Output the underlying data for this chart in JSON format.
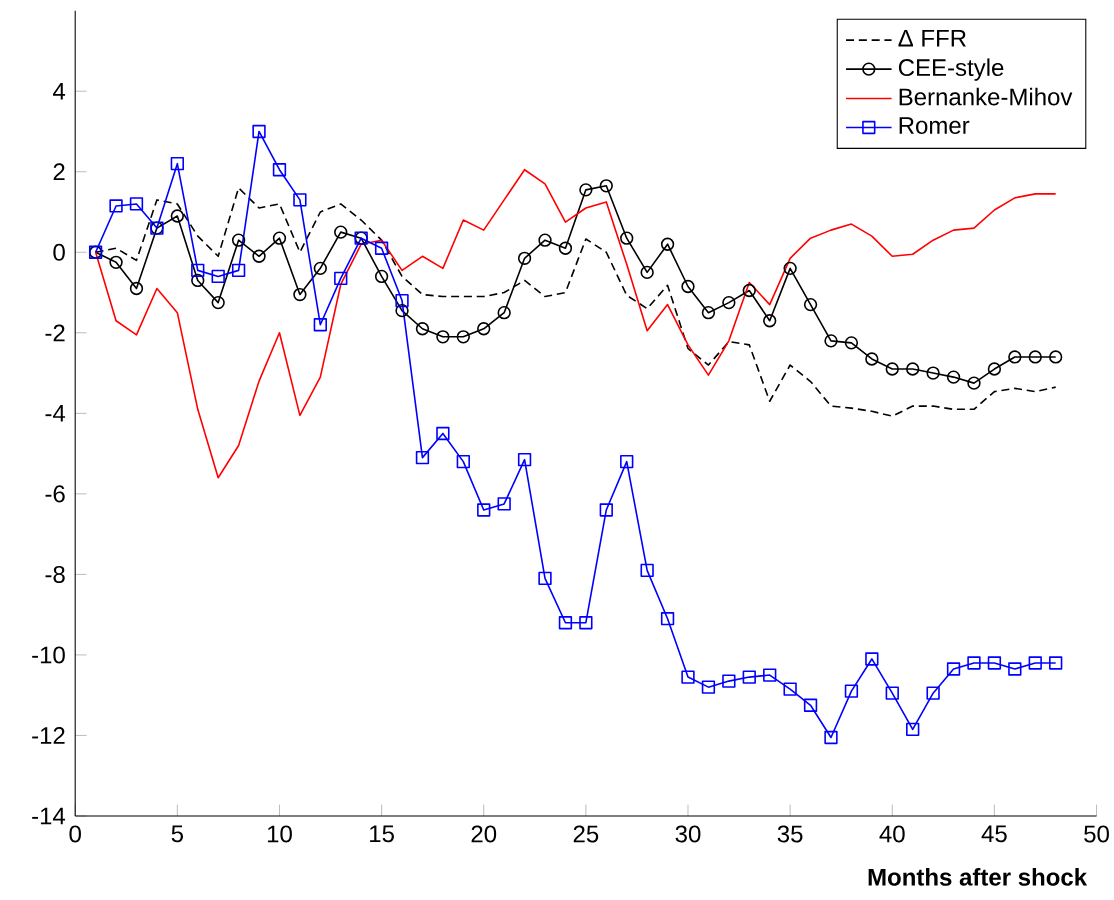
{
  "chart_data": {
    "type": "line",
    "xlabel": "Months after shock",
    "x": [
      1,
      2,
      3,
      4,
      5,
      6,
      7,
      8,
      9,
      10,
      11,
      12,
      13,
      14,
      15,
      16,
      17,
      18,
      19,
      20,
      21,
      22,
      23,
      24,
      25,
      26,
      27,
      28,
      29,
      30,
      31,
      32,
      33,
      34,
      35,
      36,
      37,
      38,
      39,
      40,
      41,
      42,
      43,
      44,
      45,
      46,
      47,
      48
    ],
    "xlim": [
      0,
      50
    ],
    "ylim": [
      -14,
      6
    ],
    "xticks": [
      0,
      5,
      10,
      15,
      20,
      25,
      30,
      35,
      40,
      45,
      50
    ],
    "yticks": [
      -14,
      -12,
      -10,
      -8,
      -6,
      -4,
      -2,
      0,
      2,
      4
    ],
    "legend": "top right",
    "grid": false,
    "series": [
      {
        "name": "Δ FFR",
        "color": "#000000",
        "line_style": "dashed",
        "marker": "none",
        "values": [
          0,
          0.1,
          -0.2,
          1.3,
          1.2,
          0.4,
          -0.1,
          1.6,
          1.1,
          1.2,
          0.0,
          1.0,
          1.2,
          0.8,
          0.3,
          -0.6,
          -1.05,
          -1.1,
          -1.1,
          -1.1,
          -1.0,
          -0.7,
          -1.1,
          -1.0,
          0.33,
          0.0,
          -1.07,
          -1.4,
          -0.82,
          -2.39,
          -2.8,
          -2.22,
          -2.3,
          -3.7,
          -2.8,
          -3.21,
          -3.82,
          -3.87,
          -3.95,
          -4.07,
          -3.82,
          -3.82,
          -3.9,
          -3.9,
          -3.46,
          -3.38,
          -3.46,
          -3.35
        ]
      },
      {
        "name": "CEE-style",
        "color": "#000000",
        "line_style": "solid",
        "marker": "circle",
        "values": [
          0,
          -0.25,
          -0.9,
          0.6,
          0.9,
          -0.7,
          -1.25,
          0.3,
          -0.1,
          0.35,
          -1.05,
          -0.4,
          0.5,
          0.35,
          -0.6,
          -1.45,
          -1.9,
          -2.1,
          -2.1,
          -1.9,
          -1.5,
          -0.15,
          0.3,
          0.1,
          1.55,
          1.65,
          0.35,
          -0.5,
          0.2,
          -0.85,
          -1.5,
          -1.25,
          -0.95,
          -1.7,
          -0.4,
          -1.3,
          -2.2,
          -2.25,
          -2.65,
          -2.9,
          -2.9,
          -3.0,
          -3.1,
          -3.25,
          -2.9,
          -2.6,
          -2.6,
          -2.6
        ]
      },
      {
        "name": "Bernanke-Mihov",
        "color": "#ff0000",
        "line_style": "solid",
        "marker": "none",
        "values": [
          0,
          -1.7,
          -2.05,
          -0.9,
          -1.5,
          -3.9,
          -5.6,
          -4.8,
          -3.2,
          -2.0,
          -4.05,
          -3.1,
          -0.8,
          0.2,
          0.3,
          -0.45,
          -0.1,
          -0.4,
          0.8,
          0.55,
          1.3,
          2.05,
          1.7,
          0.75,
          1.1,
          1.25,
          -0.3,
          -1.95,
          -1.3,
          -2.3,
          -3.05,
          -2.2,
          -0.75,
          -1.3,
          -0.15,
          0.35,
          0.55,
          0.7,
          0.4,
          -0.1,
          -0.05,
          0.3,
          0.55,
          0.6,
          1.05,
          1.35,
          1.45,
          1.45
        ]
      },
      {
        "name": "Romer",
        "color": "#0000ff",
        "line_style": "solid",
        "marker": "square",
        "values": [
          0,
          1.15,
          1.2,
          0.6,
          2.2,
          -0.45,
          -0.6,
          -0.45,
          3.0,
          2.05,
          1.3,
          -1.8,
          -0.65,
          0.35,
          0.1,
          -1.2,
          -5.1,
          -4.5,
          -5.2,
          -6.4,
          -6.25,
          -5.15,
          -8.1,
          -9.2,
          -9.2,
          -6.4,
          -5.2,
          -7.9,
          -9.1,
          -10.55,
          -10.8,
          -10.65,
          -10.55,
          -10.5,
          -10.85,
          -11.25,
          -12.05,
          -10.9,
          -10.1,
          -10.95,
          -11.85,
          -10.95,
          -10.35,
          -10.2,
          -10.2,
          -10.35,
          -10.2,
          -10.2
        ]
      }
    ]
  }
}
